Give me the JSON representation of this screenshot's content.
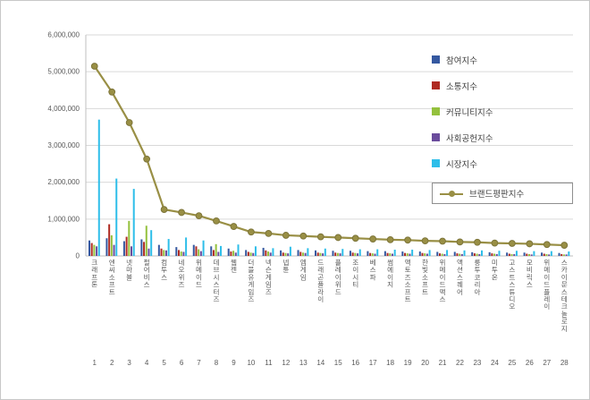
{
  "chart_data": {
    "type": "bar+line",
    "title": "",
    "ylim": [
      0,
      6000000
    ],
    "ytick_step": 1000000,
    "ytick_labels": [
      "0",
      "1,000,000",
      "2,000,000",
      "3,000,000",
      "4,000,000",
      "5,000,000",
      "6,000,000"
    ],
    "grid": true,
    "grid_color": "#d9d9d9",
    "axis_color": "#bfbfbf",
    "text_color": "#595959",
    "legend_position": "right-top-boxed-last",
    "categories": [
      "크래프톤",
      "엔씨소프트",
      "넷마블",
      "펄어비스",
      "컴투스",
      "네오위즈",
      "위메이드",
      "데브시스터즈",
      "웹젠",
      "더블유게임즈",
      "넥슨게임즈",
      "넵튠",
      "엠게임",
      "드래곤플라이",
      "플레이위드",
      "조이시티",
      "베스파",
      "썸에이지",
      "액토즈소프트",
      "한빛소프트",
      "위메이드맥스",
      "액션스퀘어",
      "룽투코리아",
      "미투온",
      "고스트스튜디오",
      "모비릭스",
      "위메이드플레이",
      "스카이문스테크놀로지"
    ],
    "index_labels": [
      "1",
      "2",
      "3",
      "4",
      "5",
      "6",
      "7",
      "8",
      "9",
      "10",
      "11",
      "12",
      "13",
      "14",
      "15",
      "16",
      "17",
      "18",
      "19",
      "20",
      "21",
      "22",
      "23",
      "24",
      "25",
      "26",
      "27",
      "28"
    ],
    "series": [
      {
        "name": "참여지수",
        "color": "#3558a0",
        "values": [
          420000,
          480000,
          400000,
          450000,
          300000,
          240000,
          300000,
          260000,
          200000,
          160000,
          220000,
          150000,
          160000,
          150000,
          140000,
          140000,
          130000,
          130000,
          120000,
          120000,
          110000,
          110000,
          100000,
          100000,
          90000,
          90000,
          90000,
          80000
        ]
      },
      {
        "name": "소통지수",
        "color": "#af2b23",
        "values": [
          350000,
          860000,
          520000,
          380000,
          200000,
          160000,
          260000,
          160000,
          120000,
          110000,
          150000,
          90000,
          110000,
          90000,
          90000,
          90000,
          80000,
          80000,
          80000,
          80000,
          70000,
          70000,
          70000,
          70000,
          60000,
          60000,
          60000,
          50000
        ]
      },
      {
        "name": "커뮤니티지수",
        "color": "#94c13d",
        "values": [
          300000,
          560000,
          950000,
          820000,
          160000,
          120000,
          180000,
          320000,
          140000,
          90000,
          120000,
          80000,
          90000,
          80000,
          80000,
          80000,
          70000,
          70000,
          70000,
          70000,
          60000,
          60000,
          60000,
          60000,
          50000,
          50000,
          50000,
          40000
        ]
      },
      {
        "name": "사회공헌지수",
        "color": "#6a4c9c",
        "values": [
          260000,
          300000,
          260000,
          200000,
          150000,
          110000,
          130000,
          110000,
          90000,
          80000,
          90000,
          70000,
          80000,
          70000,
          70000,
          70000,
          60000,
          60000,
          60000,
          60000,
          50000,
          50000,
          50000,
          50000,
          50000,
          40000,
          40000,
          40000
        ]
      },
      {
        "name": "시장지수",
        "color": "#2ebee9",
        "values": [
          3700000,
          2100000,
          1820000,
          700000,
          460000,
          500000,
          420000,
          270000,
          310000,
          260000,
          210000,
          250000,
          210000,
          200000,
          190000,
          180000,
          180000,
          170000,
          170000,
          160000,
          160000,
          150000,
          150000,
          140000,
          140000,
          130000,
          130000,
          120000
        ]
      }
    ],
    "line_series": {
      "name": "브랜드평판지수",
      "color": "#998f45",
      "marker_stroke": "#7d753a",
      "values": [
        5150000,
        4450000,
        3620000,
        2630000,
        1260000,
        1180000,
        1090000,
        950000,
        800000,
        650000,
        610000,
        560000,
        540000,
        520000,
        500000,
        480000,
        460000,
        440000,
        430000,
        410000,
        400000,
        380000,
        370000,
        350000,
        340000,
        330000,
        310000,
        290000
      ]
    }
  }
}
